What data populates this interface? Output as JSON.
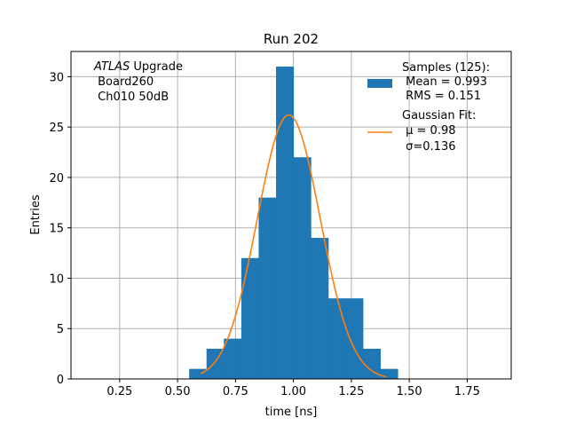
{
  "chart_data": {
    "type": "bar",
    "title": "Run 202",
    "xlabel": "time [ns]",
    "ylabel": "Entries",
    "xlim": [
      0.04,
      1.94
    ],
    "ylim": [
      0,
      32.5
    ],
    "xticks": [
      "0.25",
      "0.50",
      "0.75",
      "1.00",
      "1.25",
      "1.50",
      "1.75"
    ],
    "xtick_values": [
      0.25,
      0.5,
      0.75,
      1.0,
      1.25,
      1.5,
      1.75
    ],
    "yticks": [
      "0",
      "5",
      "10",
      "15",
      "20",
      "25",
      "30"
    ],
    "ytick_values": [
      0,
      5,
      10,
      15,
      20,
      25,
      30
    ],
    "grid": true,
    "histogram": {
      "bin_edges": [
        0.55,
        0.625,
        0.7,
        0.775,
        0.85,
        0.925,
        1.0,
        1.075,
        1.15,
        1.225,
        1.3,
        1.375,
        1.45
      ],
      "values": [
        1,
        3,
        4,
        12,
        18,
        31,
        22,
        14,
        8,
        8,
        3,
        1
      ],
      "color": "#1f77b4"
    },
    "fit": {
      "mu": 0.98,
      "sigma": 0.136,
      "amplitude": 26.2,
      "x_range": [
        0.6,
        1.4
      ],
      "color": "#ff7f0e"
    },
    "annotation": {
      "italic": "ATLAS",
      "line1_rest": " Upgrade",
      "line2": " Board260",
      "line3": " Ch010 50dB"
    },
    "legend": {
      "placement": "top-right",
      "hist_lines": [
        "Samples (125):",
        " Mean = 0.993",
        " RMS = 0.151"
      ],
      "fit_lines": [
        "Gaussian Fit:",
        " μ = 0.98",
        " σ=0.136"
      ]
    }
  }
}
